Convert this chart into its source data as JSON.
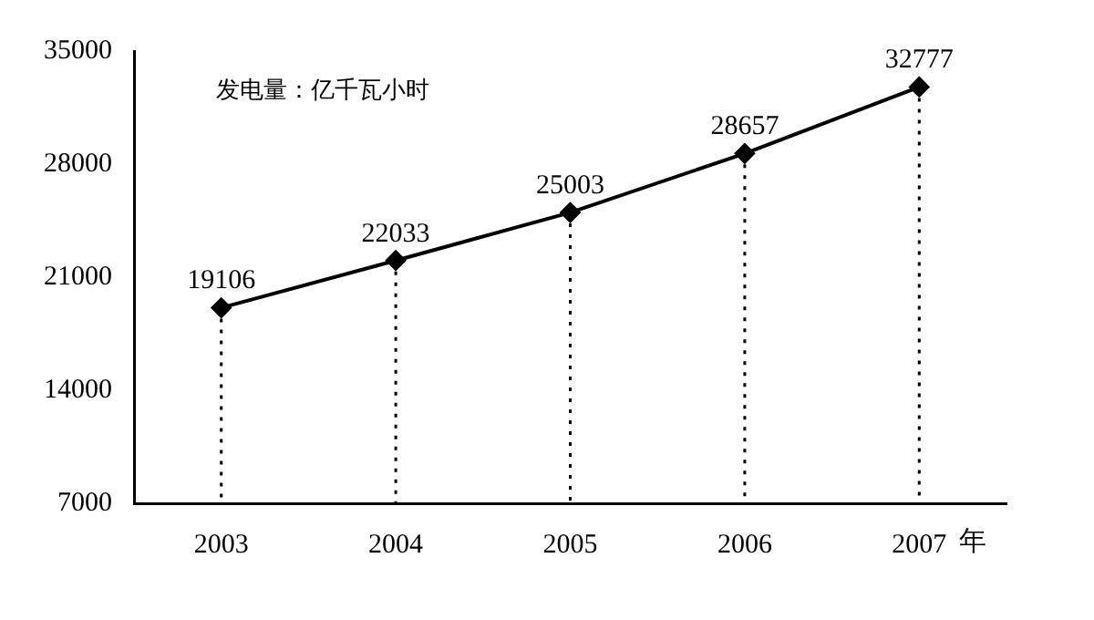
{
  "chart_data": {
    "type": "line",
    "categories": [
      "2003",
      "2004",
      "2005",
      "2006",
      "2007"
    ],
    "series": [
      {
        "color": "#000000",
        "values": [
          19106,
          22033,
          25003,
          28657,
          32777
        ]
      }
    ],
    "xlabel": "年",
    "annotations": [
      "发电量：亿千瓦小时"
    ],
    "ylim": [
      7000,
      35000
    ],
    "yticks": [
      7000,
      14000,
      21000,
      28000,
      35000
    ],
    "grid": "x",
    "legend": false,
    "marker": "diamond",
    "line_style": "solid",
    "data_labels": true
  }
}
